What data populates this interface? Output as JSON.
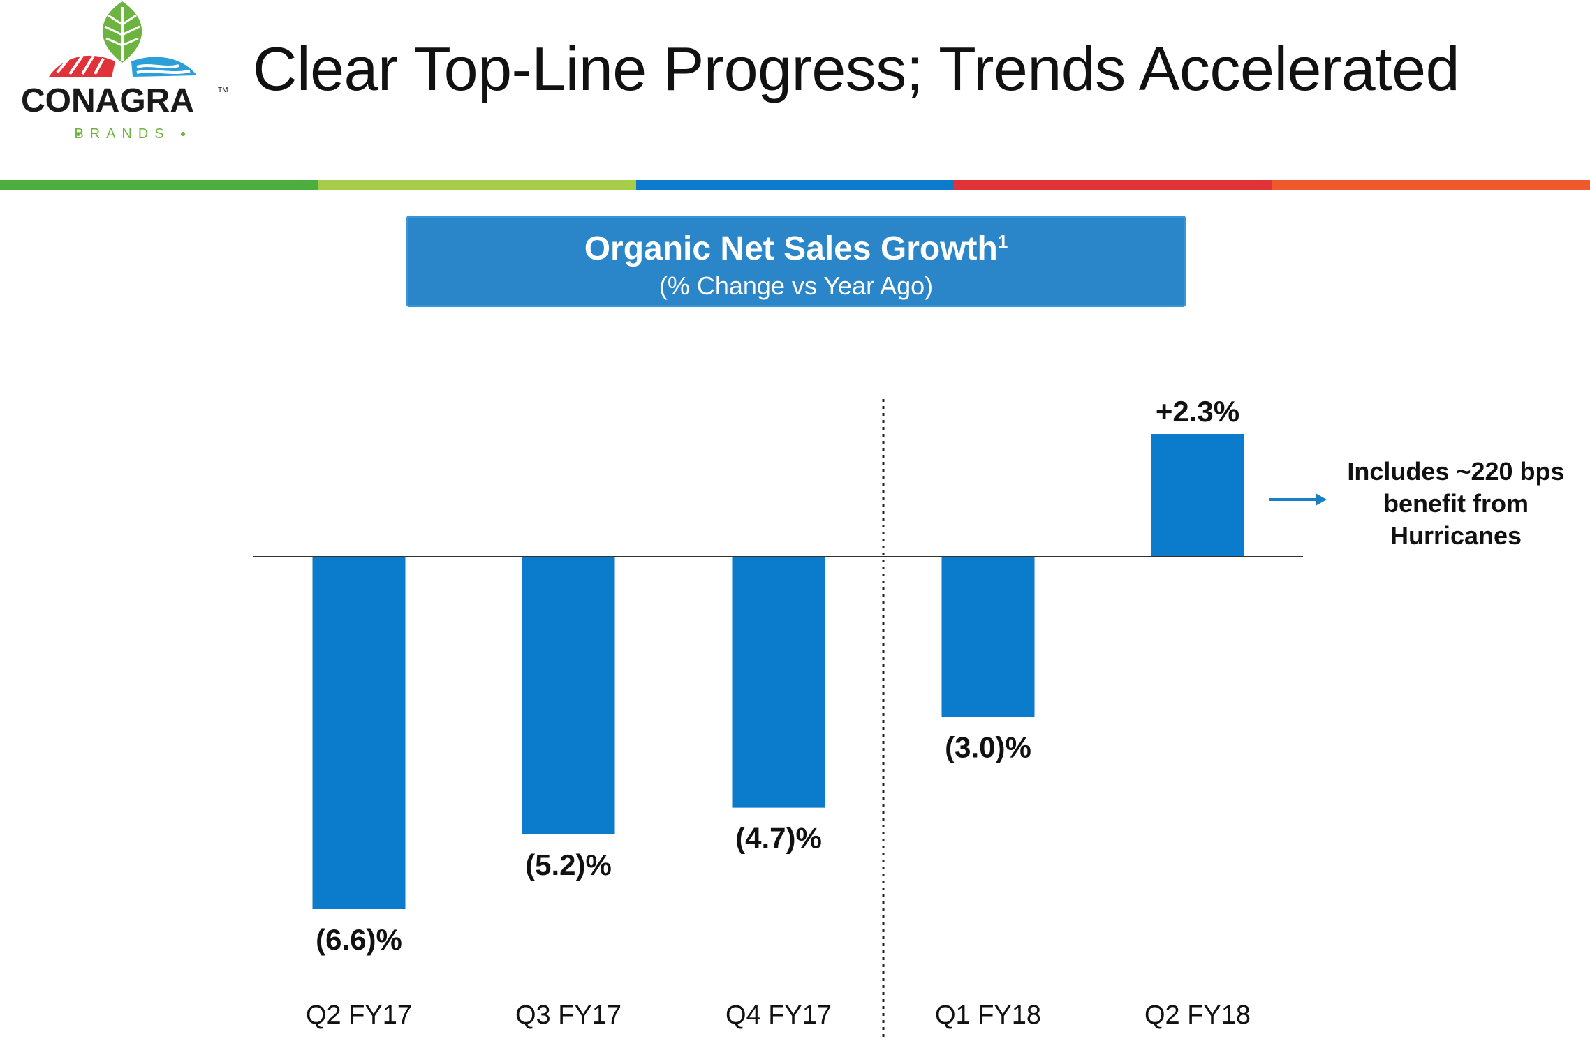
{
  "header": {
    "title": "Clear Top-Line Progress; Trends Accelerated",
    "logo": {
      "name": "CONAGRA",
      "sub": "BRANDS",
      "mark": "TM"
    },
    "stripe_colors": [
      "#4cae3f",
      "#a6cc4a",
      "#0d7bcc",
      "#e03238",
      "#ee5a2c"
    ]
  },
  "chart_data": {
    "type": "bar",
    "title": "Organic Net Sales Growth",
    "title_superscript": "1",
    "subtitle": "(% Change vs Year Ago)",
    "categories": [
      "Q2 FY17",
      "Q3 FY17",
      "Q4 FY17",
      "Q1 FY18",
      "Q2 FY18"
    ],
    "values": [
      -6.6,
      -5.2,
      -4.7,
      -3.0,
      2.3
    ],
    "value_labels": [
      "(6.6)%",
      "(5.2)%",
      "(4.7)%",
      "(3.0)%",
      "+2.3%"
    ],
    "ylim": [
      -6.6,
      2.3
    ],
    "bar_color": "#0b7ccb",
    "grid": false,
    "divider_after_index": 2,
    "annotation": {
      "lines": [
        "Includes ~220 bps",
        "benefit from",
        "Hurricanes"
      ],
      "points_to": "Q2 FY18"
    }
  }
}
